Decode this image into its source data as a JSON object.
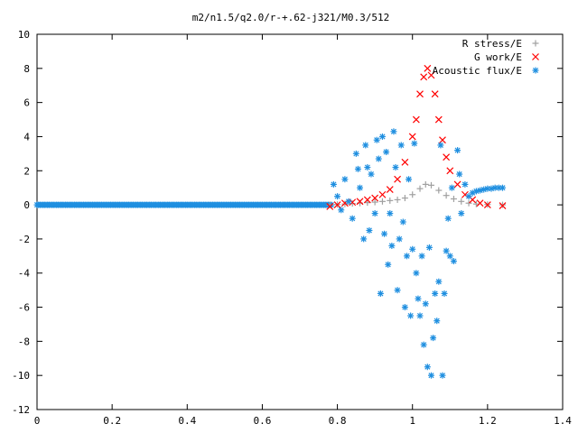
{
  "chart_data": {
    "type": "scatter",
    "title": "m2/n1.5/q2.0/r-+.62-j321/M0.3/512",
    "xlabel": "",
    "ylabel": "",
    "xlim": [
      0,
      1.4
    ],
    "ylim": [
      -12,
      10
    ],
    "x_ticks": [
      "0",
      "0.2",
      "0.4",
      "0.6",
      "0.8",
      "1",
      "1.2",
      "1.4"
    ],
    "y_ticks": [
      "10",
      "8",
      "6",
      "4",
      "2",
      "0",
      "-2",
      "-4",
      "-6",
      "-8",
      "-10",
      "-12"
    ],
    "grid": false,
    "legend_position": "top-right",
    "series": [
      {
        "name": "R stress/E",
        "marker": "+",
        "color": "#a0a0a0",
        "points": [
          [
            0.78,
            0.0
          ],
          [
            0.8,
            0.02
          ],
          [
            0.82,
            0.05
          ],
          [
            0.84,
            0.08
          ],
          [
            0.86,
            0.1
          ],
          [
            0.88,
            0.13
          ],
          [
            0.9,
            0.16
          ],
          [
            0.92,
            0.2
          ],
          [
            0.94,
            0.25
          ],
          [
            0.96,
            0.3
          ],
          [
            0.98,
            0.4
          ],
          [
            1.0,
            0.6
          ],
          [
            1.02,
            0.95
          ],
          [
            1.035,
            1.2
          ],
          [
            1.05,
            1.15
          ],
          [
            1.07,
            0.85
          ],
          [
            1.09,
            0.55
          ],
          [
            1.11,
            0.35
          ],
          [
            1.13,
            0.2
          ],
          [
            1.15,
            0.1
          ],
          [
            1.17,
            0.05
          ],
          [
            1.2,
            0.02
          ],
          [
            1.24,
            0.0
          ]
        ]
      },
      {
        "name": "G work/E",
        "marker": "x",
        "color": "#ff0000",
        "points": [
          [
            0.78,
            -0.1
          ],
          [
            0.8,
            0.0
          ],
          [
            0.82,
            0.1
          ],
          [
            0.84,
            0.15
          ],
          [
            0.86,
            0.2
          ],
          [
            0.88,
            0.3
          ],
          [
            0.9,
            0.4
          ],
          [
            0.92,
            0.6
          ],
          [
            0.94,
            0.9
          ],
          [
            0.96,
            1.5
          ],
          [
            0.98,
            2.5
          ],
          [
            1.0,
            4.0
          ],
          [
            1.01,
            5.0
          ],
          [
            1.02,
            6.5
          ],
          [
            1.03,
            7.5
          ],
          [
            1.04,
            8.0
          ],
          [
            1.05,
            7.6
          ],
          [
            1.06,
            6.5
          ],
          [
            1.07,
            5.0
          ],
          [
            1.08,
            3.8
          ],
          [
            1.09,
            2.8
          ],
          [
            1.1,
            2.0
          ],
          [
            1.12,
            1.2
          ],
          [
            1.14,
            0.6
          ],
          [
            1.16,
            0.3
          ],
          [
            1.18,
            0.1
          ],
          [
            1.2,
            0.0
          ],
          [
            1.24,
            -0.05
          ]
        ]
      },
      {
        "name": "Acoustic flux/E",
        "marker": "*",
        "color": "#1f8fe0",
        "points": [
          [
            0.79,
            1.2
          ],
          [
            0.8,
            0.5
          ],
          [
            0.81,
            -0.3
          ],
          [
            0.82,
            1.5
          ],
          [
            0.83,
            0.2
          ],
          [
            0.84,
            -0.8
          ],
          [
            0.85,
            3.0
          ],
          [
            0.855,
            2.1
          ],
          [
            0.86,
            1.0
          ],
          [
            0.87,
            -2.0
          ],
          [
            0.875,
            3.5
          ],
          [
            0.88,
            2.2
          ],
          [
            0.885,
            -1.5
          ],
          [
            0.89,
            1.8
          ],
          [
            0.9,
            -0.5
          ],
          [
            0.905,
            3.8
          ],
          [
            0.91,
            2.7
          ],
          [
            0.915,
            -5.2
          ],
          [
            0.92,
            4.0
          ],
          [
            0.925,
            -1.7
          ],
          [
            0.93,
            3.1
          ],
          [
            0.935,
            -3.5
          ],
          [
            0.94,
            -0.5
          ],
          [
            0.945,
            -2.4
          ],
          [
            0.95,
            4.3
          ],
          [
            0.955,
            2.2
          ],
          [
            0.96,
            -5.0
          ],
          [
            0.965,
            -2.0
          ],
          [
            0.97,
            3.5
          ],
          [
            0.975,
            -1.0
          ],
          [
            0.98,
            -6.0
          ],
          [
            0.985,
            -3.0
          ],
          [
            0.99,
            1.5
          ],
          [
            0.995,
            -6.5
          ],
          [
            1.0,
            -2.6
          ],
          [
            1.005,
            3.6
          ],
          [
            1.01,
            -4.0
          ],
          [
            1.015,
            -5.5
          ],
          [
            1.02,
            -6.5
          ],
          [
            1.025,
            -3.0
          ],
          [
            1.03,
            -8.2
          ],
          [
            1.035,
            -5.8
          ],
          [
            1.04,
            -9.5
          ],
          [
            1.045,
            -2.5
          ],
          [
            1.05,
            -10.0
          ],
          [
            1.055,
            -7.8
          ],
          [
            1.06,
            -5.2
          ],
          [
            1.065,
            -6.8
          ],
          [
            1.07,
            -4.5
          ],
          [
            1.075,
            3.5
          ],
          [
            1.08,
            -10.0
          ],
          [
            1.085,
            -5.2
          ],
          [
            1.09,
            -2.7
          ],
          [
            1.095,
            -0.8
          ],
          [
            1.1,
            -3.0
          ],
          [
            1.105,
            1.0
          ],
          [
            1.11,
            -3.3
          ],
          [
            1.12,
            3.2
          ],
          [
            1.125,
            1.8
          ],
          [
            1.13,
            -0.5
          ],
          [
            1.14,
            1.2
          ],
          [
            1.15,
            0.5
          ],
          [
            1.16,
            0.7
          ],
          [
            1.17,
            0.8
          ],
          [
            1.18,
            0.85
          ],
          [
            1.19,
            0.9
          ],
          [
            1.2,
            0.95
          ],
          [
            1.21,
            0.95
          ],
          [
            1.22,
            1.0
          ],
          [
            1.23,
            1.0
          ],
          [
            1.24,
            1.0
          ]
        ]
      }
    ]
  }
}
